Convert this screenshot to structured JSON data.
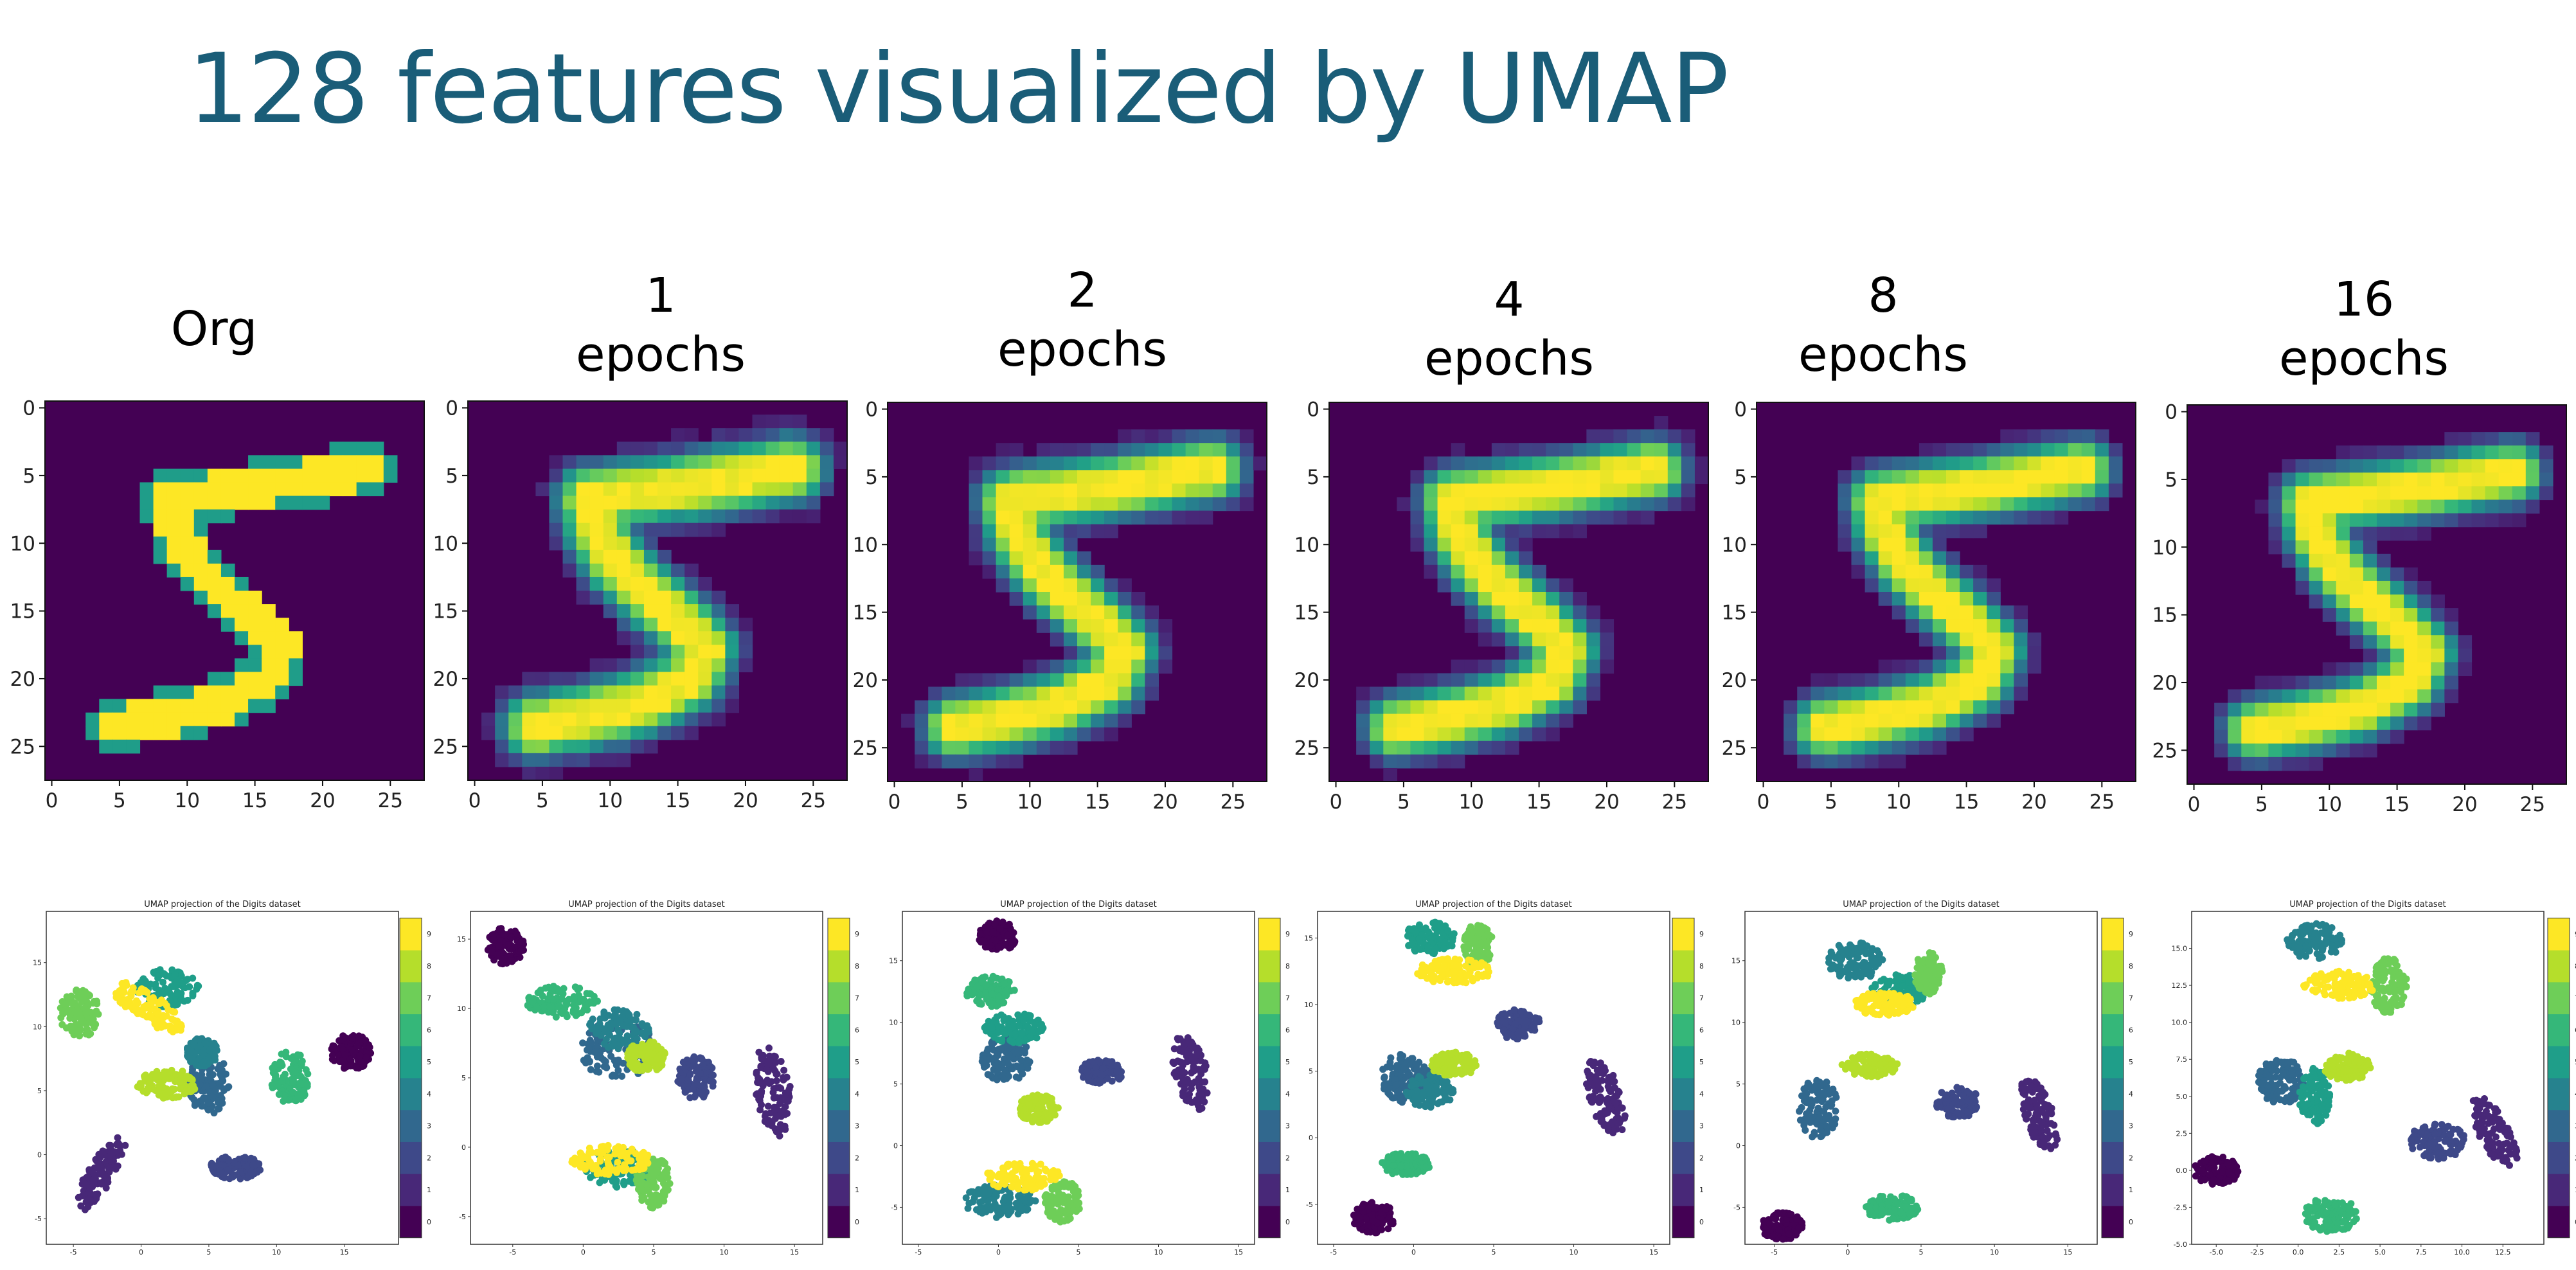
{
  "slide": {
    "title": "128 features visualized by UMAP"
  },
  "columns": [
    {
      "number": "",
      "label": "Org"
    },
    {
      "number": "1",
      "label": "epochs"
    },
    {
      "number": "2",
      "label": "epochs"
    },
    {
      "number": "4",
      "label": "epochs"
    },
    {
      "number": "8",
      "label": "epochs"
    },
    {
      "number": "16",
      "label": "epochs"
    }
  ],
  "image_axis_ticks": [
    "0",
    "5",
    "10",
    "15",
    "20",
    "25"
  ],
  "umap_title": "UMAP projection of the Digits dataset",
  "colorbar_ticks": [
    "0",
    "1",
    "2",
    "3",
    "4",
    "5",
    "6",
    "7",
    "8",
    "9"
  ],
  "colors": {
    "title": "#1a5d78",
    "viridis": [
      "#440154",
      "#482878",
      "#3e4989",
      "#31688e",
      "#26828e",
      "#1f9e89",
      "#35b779",
      "#6ece58",
      "#b5de2b",
      "#fde725"
    ]
  },
  "chart_data": [
    {
      "type": "heatmap",
      "panel": "Org",
      "x_ticks": [
        0,
        5,
        10,
        15,
        20,
        25
      ],
      "y_ticks": [
        0,
        5,
        10,
        15,
        20,
        25
      ],
      "xlim": [
        -0.5,
        27.5
      ],
      "ylim": [
        27.5,
        -0.5
      ]
    },
    {
      "type": "heatmap",
      "panel": "1 epochs",
      "x_ticks": [
        0,
        5,
        10,
        15,
        20,
        25
      ],
      "y_ticks": [
        0,
        5,
        10,
        15,
        20,
        25
      ],
      "xlim": [
        -0.5,
        27.5
      ],
      "ylim": [
        27.5,
        -0.5
      ]
    },
    {
      "type": "heatmap",
      "panel": "2 epochs",
      "x_ticks": [
        0,
        5,
        10,
        15,
        20,
        25
      ],
      "y_ticks": [
        0,
        5,
        10,
        15,
        20,
        25
      ],
      "xlim": [
        -0.5,
        27.5
      ],
      "ylim": [
        27.5,
        -0.5
      ]
    },
    {
      "type": "heatmap",
      "panel": "4 epochs",
      "x_ticks": [
        0,
        5,
        10,
        15,
        20,
        25
      ],
      "y_ticks": [
        0,
        5,
        10,
        15,
        20,
        25
      ],
      "xlim": [
        -0.5,
        27.5
      ],
      "ylim": [
        27.5,
        -0.5
      ]
    },
    {
      "type": "heatmap",
      "panel": "8 epochs",
      "x_ticks": [
        0,
        5,
        10,
        15,
        20,
        25
      ],
      "y_ticks": [
        0,
        5,
        10,
        15,
        20,
        25
      ],
      "xlim": [
        -0.5,
        27.5
      ],
      "ylim": [
        27.5,
        -0.5
      ]
    },
    {
      "type": "heatmap",
      "panel": "16 epochs",
      "x_ticks": [
        0,
        5,
        10,
        15,
        20,
        25
      ],
      "y_ticks": [
        0,
        5,
        10,
        15,
        20,
        25
      ],
      "xlim": [
        -0.5,
        27.5
      ],
      "ylim": [
        27.5,
        -0.5
      ]
    },
    {
      "type": "scatter",
      "panel": "Org",
      "title": "UMAP projection of the Digits dataset",
      "x_ticks": [
        "-5",
        "0",
        "5",
        "10",
        "15"
      ],
      "y_ticks": [
        "-5",
        "0",
        "5",
        "10",
        "15"
      ],
      "xlim": [
        -7,
        19
      ],
      "ylim": [
        -7,
        19
      ],
      "clusters": [
        {
          "digit": 0,
          "cx": 15.5,
          "cy": 8.0,
          "rx": 1.6,
          "ry": 1.5
        },
        {
          "digit": 1,
          "cx": -3.0,
          "cy": -1.5,
          "rx": 1.0,
          "ry": 3.5,
          "rot": -30
        },
        {
          "digit": 2,
          "cx": 7.0,
          "cy": -1.0,
          "rx": 2.0,
          "ry": 1.0
        },
        {
          "digit": 3,
          "cx": 5.0,
          "cy": 5.5,
          "rx": 1.6,
          "ry": 2.5
        },
        {
          "digit": 4,
          "cx": 4.5,
          "cy": 8.0,
          "rx": 1.2,
          "ry": 1.2
        },
        {
          "digit": 5,
          "cx": 2.0,
          "cy": 13.0,
          "rx": 2.5,
          "ry": 1.6
        },
        {
          "digit": 6,
          "cx": 11.0,
          "cy": 6.0,
          "rx": 1.5,
          "ry": 2.2
        },
        {
          "digit": 7,
          "cx": -4.5,
          "cy": 11.0,
          "rx": 1.6,
          "ry": 2.0
        },
        {
          "digit": 8,
          "cx": 2.0,
          "cy": 5.5,
          "rx": 2.5,
          "ry": 1.2
        },
        {
          "digit": 9,
          "cx": 0.5,
          "cy": 11.5,
          "rx": 3.2,
          "ry": 1.2,
          "rot": -35
        }
      ]
    },
    {
      "type": "scatter",
      "panel": "1 epochs",
      "title": "UMAP projection of the Digits dataset",
      "x_ticks": [
        "-5",
        "0",
        "5",
        "10",
        "15"
      ],
      "y_ticks": [
        "-5",
        "0",
        "5",
        "10",
        "15"
      ],
      "xlim": [
        -8,
        17
      ],
      "ylim": [
        -7,
        17
      ],
      "clusters": [
        {
          "digit": 0,
          "cx": -5.5,
          "cy": 14.5,
          "rx": 1.4,
          "ry": 1.4
        },
        {
          "digit": 1,
          "cx": 13.5,
          "cy": 4.0,
          "rx": 1.3,
          "ry": 3.5,
          "rot": 10
        },
        {
          "digit": 2,
          "cx": 8.0,
          "cy": 5.0,
          "rx": 1.4,
          "ry": 1.6
        },
        {
          "digit": 3,
          "cx": 2.5,
          "cy": 7.0,
          "rx": 2.8,
          "ry": 2.2
        },
        {
          "digit": 4,
          "cx": 2.5,
          "cy": 8.5,
          "rx": 2.3,
          "ry": 1.5
        },
        {
          "digit": 5,
          "cx": 2.5,
          "cy": -1.5,
          "rx": 2.5,
          "ry": 1.5
        },
        {
          "digit": 6,
          "cx": -1.5,
          "cy": 10.5,
          "rx": 2.7,
          "ry": 1.2
        },
        {
          "digit": 7,
          "cx": 5.0,
          "cy": -2.5,
          "rx": 1.3,
          "ry": 2.0
        },
        {
          "digit": 8,
          "cx": 4.5,
          "cy": 6.5,
          "rx": 1.5,
          "ry": 1.2
        },
        {
          "digit": 9,
          "cx": 2.0,
          "cy": -1.0,
          "rx": 3.0,
          "ry": 1.2
        }
      ]
    },
    {
      "type": "scatter",
      "panel": "2 epochs",
      "title": "UMAP projection of the Digits dataset",
      "x_ticks": [
        "-5",
        "0",
        "5",
        "10",
        "15"
      ],
      "y_ticks": [
        "-5",
        "0",
        "5",
        "10",
        "15"
      ],
      "xlim": [
        -6,
        16
      ],
      "ylim": [
        -8,
        19
      ],
      "clusters": [
        {
          "digit": 0,
          "cx": 0.0,
          "cy": 17.0,
          "rx": 1.3,
          "ry": 1.3
        },
        {
          "digit": 1,
          "cx": 12.0,
          "cy": 6.0,
          "rx": 1.1,
          "ry": 3.3,
          "rot": 10
        },
        {
          "digit": 2,
          "cx": 6.5,
          "cy": 6.0,
          "rx": 1.5,
          "ry": 1.0
        },
        {
          "digit": 3,
          "cx": 0.5,
          "cy": 7.0,
          "rx": 1.6,
          "ry": 2.0
        },
        {
          "digit": 4,
          "cx": 0.0,
          "cy": -4.5,
          "rx": 2.5,
          "ry": 1.4
        },
        {
          "digit": 5,
          "cx": 1.0,
          "cy": 9.5,
          "rx": 2.0,
          "ry": 1.3
        },
        {
          "digit": 6,
          "cx": -0.5,
          "cy": 12.5,
          "rx": 1.6,
          "ry": 1.3
        },
        {
          "digit": 7,
          "cx": 4.0,
          "cy": -4.5,
          "rx": 1.2,
          "ry": 1.8
        },
        {
          "digit": 8,
          "cx": 2.5,
          "cy": 3.0,
          "rx": 1.3,
          "ry": 1.2
        },
        {
          "digit": 9,
          "cx": 1.5,
          "cy": -2.5,
          "rx": 2.5,
          "ry": 1.2
        }
      ]
    },
    {
      "type": "scatter",
      "panel": "4 epochs",
      "title": "UMAP projection of the Digits dataset",
      "x_ticks": [
        "-5",
        "0",
        "5",
        "10",
        "15"
      ],
      "y_ticks": [
        "-5",
        "0",
        "5",
        "10",
        "15"
      ],
      "xlim": [
        -6,
        16
      ],
      "ylim": [
        -8,
        17
      ],
      "clusters": [
        {
          "digit": 0,
          "cx": -2.5,
          "cy": -6.0,
          "rx": 1.4,
          "ry": 1.2
        },
        {
          "digit": 1,
          "cx": 12.0,
          "cy": 3.0,
          "rx": 1.1,
          "ry": 3.2,
          "rot": 15
        },
        {
          "digit": 2,
          "cx": 6.5,
          "cy": 8.5,
          "rx": 1.5,
          "ry": 1.2
        },
        {
          "digit": 3,
          "cx": -0.5,
          "cy": 4.5,
          "rx": 1.6,
          "ry": 2.0
        },
        {
          "digit": 4,
          "cx": 1.0,
          "cy": 3.5,
          "rx": 1.6,
          "ry": 1.3
        },
        {
          "digit": 5,
          "cx": 1.0,
          "cy": 15.0,
          "rx": 1.7,
          "ry": 1.3
        },
        {
          "digit": 6,
          "cx": -0.5,
          "cy": -2.0,
          "rx": 1.6,
          "ry": 0.9
        },
        {
          "digit": 7,
          "cx": 4.0,
          "cy": 14.5,
          "rx": 1.0,
          "ry": 1.7
        },
        {
          "digit": 8,
          "cx": 2.5,
          "cy": 5.5,
          "rx": 1.5,
          "ry": 1.0
        },
        {
          "digit": 9,
          "cx": 2.5,
          "cy": 12.5,
          "rx": 2.5,
          "ry": 1.0
        }
      ]
    },
    {
      "type": "scatter",
      "panel": "8 epochs",
      "title": "UMAP projection of the Digits dataset",
      "x_ticks": [
        "-5",
        "0",
        "5",
        "10",
        "15"
      ],
      "y_ticks": [
        "-5",
        "0",
        "5",
        "10",
        "15"
      ],
      "xlim": [
        -7,
        17
      ],
      "ylim": [
        -8,
        19
      ],
      "clusters": [
        {
          "digit": 0,
          "cx": -4.5,
          "cy": -6.5,
          "rx": 1.5,
          "ry": 1.2
        },
        {
          "digit": 1,
          "cx": 13.0,
          "cy": 2.5,
          "rx": 1.1,
          "ry": 3.3,
          "rot": 15
        },
        {
          "digit": 2,
          "cx": 7.5,
          "cy": 3.5,
          "rx": 1.6,
          "ry": 1.3
        },
        {
          "digit": 3,
          "cx": -2.0,
          "cy": 3.0,
          "rx": 1.4,
          "ry": 2.6
        },
        {
          "digit": 4,
          "cx": 0.5,
          "cy": 15.0,
          "rx": 2.0,
          "ry": 1.6
        },
        {
          "digit": 5,
          "cx": 3.5,
          "cy": 12.5,
          "rx": 2.0,
          "ry": 1.5
        },
        {
          "digit": 6,
          "cx": 3.0,
          "cy": -5.0,
          "rx": 1.9,
          "ry": 1.1
        },
        {
          "digit": 7,
          "cx": 5.5,
          "cy": 14.0,
          "rx": 1.0,
          "ry": 1.8
        },
        {
          "digit": 8,
          "cx": 1.5,
          "cy": 6.5,
          "rx": 2.0,
          "ry": 1.0
        },
        {
          "digit": 9,
          "cx": 2.5,
          "cy": 11.5,
          "rx": 2.2,
          "ry": 1.0
        }
      ]
    },
    {
      "type": "scatter",
      "panel": "16 epochs",
      "title": "UMAP projection of the Digits dataset",
      "x_ticks": [
        "-5.0",
        "-2.5",
        "0.0",
        "2.5",
        "5.0",
        "7.5",
        "10.0",
        "12.5"
      ],
      "y_ticks": [
        "-5.0",
        "-2.5",
        "0.0",
        "2.5",
        "5.0",
        "7.5",
        "10.0",
        "12.5",
        "15.0"
      ],
      "xlim": [
        -6.5,
        15
      ],
      "ylim": [
        -5,
        17.5
      ],
      "clusters": [
        {
          "digit": 0,
          "cx": -5.0,
          "cy": 0.0,
          "rx": 1.5,
          "ry": 1.0
        },
        {
          "digit": 1,
          "cx": 12.0,
          "cy": 2.5,
          "rx": 1.0,
          "ry": 2.8,
          "rot": 25
        },
        {
          "digit": 2,
          "cx": 8.5,
          "cy": 2.0,
          "rx": 1.8,
          "ry": 1.3
        },
        {
          "digit": 3,
          "cx": -1.0,
          "cy": 6.0,
          "rx": 1.6,
          "ry": 1.6
        },
        {
          "digit": 4,
          "cx": 1.0,
          "cy": 15.5,
          "rx": 1.8,
          "ry": 1.3
        },
        {
          "digit": 5,
          "cx": 1.0,
          "cy": 5.0,
          "rx": 1.0,
          "ry": 2.0
        },
        {
          "digit": 6,
          "cx": 2.0,
          "cy": -3.0,
          "rx": 1.8,
          "ry": 1.2
        },
        {
          "digit": 7,
          "cx": 5.5,
          "cy": 12.5,
          "rx": 1.2,
          "ry": 2.0
        },
        {
          "digit": 8,
          "cx": 3.0,
          "cy": 7.0,
          "rx": 1.5,
          "ry": 1.0
        },
        {
          "digit": 9,
          "cx": 2.5,
          "cy": 12.5,
          "rx": 2.3,
          "ry": 1.0
        }
      ]
    }
  ]
}
